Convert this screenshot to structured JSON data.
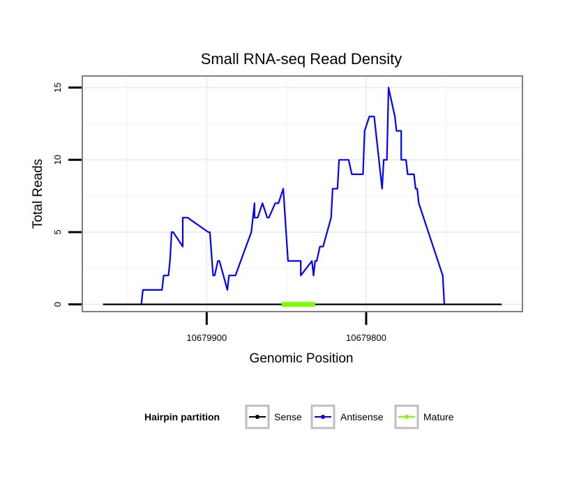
{
  "chart_data": {
    "type": "line",
    "title": "Small RNA-seq Read Density",
    "xlabel": "Genomic Position",
    "ylabel": "Total Reads",
    "x_reversed": true,
    "xlim": [
      10679978,
      10679702
    ],
    "ylim": [
      -0.5,
      15.8
    ],
    "x_ticks": [
      10679900,
      10679800
    ],
    "x_tick_labels": [
      "10679900",
      "10679800"
    ],
    "y_ticks": [
      0,
      5,
      10,
      15
    ],
    "y_tick_labels": [
      "0",
      "5",
      "10",
      "15"
    ],
    "grid": true,
    "legend": {
      "title": "Hairpin partition",
      "placement": "bottom",
      "entries": [
        {
          "label": "Sense",
          "color": "#000000"
        },
        {
          "label": "Antisense",
          "color": "#0000ff"
        },
        {
          "label": "Mature",
          "color": "#7cfc00"
        }
      ]
    },
    "series": [
      {
        "name": "Sense",
        "color": "#000000",
        "x": [
          10679965,
          10679715
        ],
        "values": [
          0,
          0
        ]
      },
      {
        "name": "Antisense",
        "color": "#0000ff",
        "x": [
          10679941,
          10679940,
          10679928,
          10679927,
          10679924,
          10679923,
          10679922,
          10679921,
          10679915,
          10679915,
          10679913,
          10679912,
          10679899,
          10679898,
          10679896,
          10679895,
          10679893,
          10679892,
          10679887,
          10679886,
          10679884,
          10679883,
          10679882,
          10679872,
          10679870,
          10679870,
          10679868,
          10679865,
          10679865,
          10679862,
          10679861,
          10679857,
          10679855,
          10679852,
          10679852,
          10679849,
          10679848,
          10679841,
          10679841,
          10679834,
          10679833,
          10679832,
          10679831,
          10679829,
          10679828,
          10679827,
          10679822,
          10679821,
          10679818,
          10679817,
          10679811,
          10679809,
          10679802,
          10679801,
          10679798,
          10679795,
          10679794,
          10679790,
          10679789,
          10679788,
          10679787,
          10679786,
          10679782,
          10679781,
          10679778,
          10679778,
          10679775,
          10679774,
          10679770,
          10679769,
          10679768,
          10679767,
          10679752,
          10679751
        ],
        "values": [
          0,
          1,
          1,
          2,
          2,
          3,
          5,
          5,
          4,
          6,
          6,
          6,
          5,
          5,
          2,
          2,
          3,
          3,
          1,
          2,
          2,
          2,
          2,
          5,
          7,
          6,
          6,
          7,
          7,
          6,
          6,
          7,
          7,
          8,
          8,
          3,
          3,
          3,
          2,
          3,
          2,
          3,
          3,
          4,
          4,
          4,
          6,
          8,
          8,
          10,
          10,
          9,
          9,
          12,
          13,
          13,
          12,
          8,
          10,
          10,
          10,
          15,
          13,
          12,
          12,
          10,
          10,
          9,
          9,
          8,
          8,
          7,
          2,
          0
        ]
      },
      {
        "name": "Mature",
        "color": "#7cfc00",
        "x": [
          10679853,
          10679832
        ],
        "values": [
          0,
          0
        ]
      }
    ]
  }
}
